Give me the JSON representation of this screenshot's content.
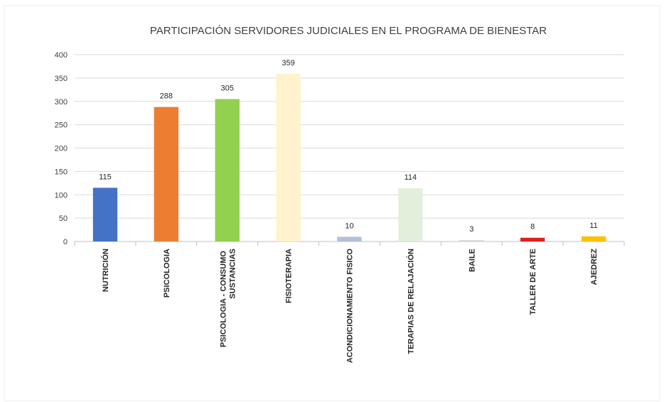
{
  "chart_data": {
    "type": "bar",
    "title": "PARTICIPACIÓN SERVIDORES JUDICIALES EN EL PROGRAMA DE BIENESTAR",
    "categories": [
      "NUTRICIÓN",
      "PSICOLOGIA",
      "PSICOLOGIA - CONSUMO SUSTANCIAS",
      "FISIOTERAPIA",
      "ACONDICIONAMIENTO FISICO",
      "TERAPIAS DE RELAJACIÓN",
      "BAILE",
      "TALLER DE ARTE",
      "AJEDREZ"
    ],
    "values": [
      115,
      288,
      305,
      359,
      10,
      114,
      3,
      8,
      11
    ],
    "colors": [
      "#4472c4",
      "#ed7d31",
      "#92d050",
      "#fff2cc",
      "#b4c0d8",
      "#e2efda",
      "#d9d9d9",
      "#e02020",
      "#ffc000"
    ],
    "ylim": [
      0,
      400
    ],
    "yticks": [
      0,
      50,
      100,
      150,
      200,
      250,
      300,
      350,
      400
    ],
    "grid": true
  }
}
